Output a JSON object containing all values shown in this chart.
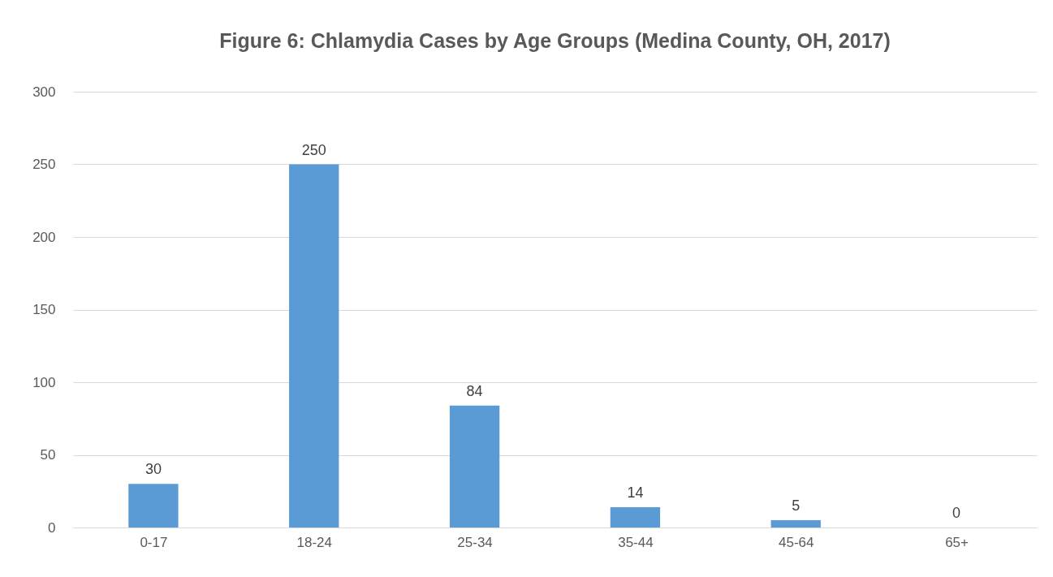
{
  "chart_data": {
    "type": "bar",
    "title": "Figure 6: Chlamydia Cases by Age Groups (Medina County, OH, 2017)",
    "categories": [
      "0-17",
      "18-24",
      "25-34",
      "35-44",
      "45-64",
      "65+"
    ],
    "values": [
      30,
      250,
      84,
      14,
      5,
      0
    ],
    "color": "#5b9bd5",
    "ylim": [
      0,
      300
    ],
    "yticks": [
      0,
      50,
      100,
      150,
      200,
      250,
      300
    ],
    "grid": "y",
    "data_labels": true
  }
}
